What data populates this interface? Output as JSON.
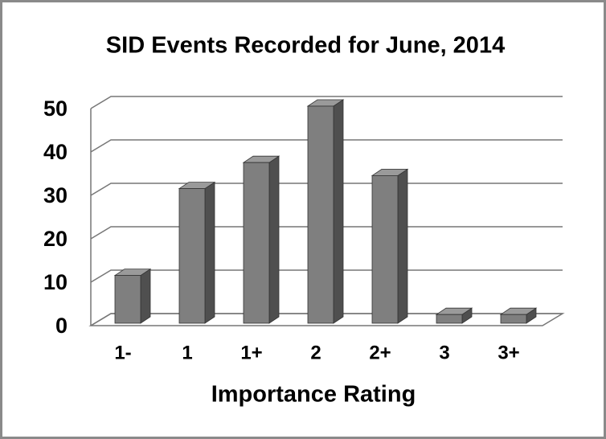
{
  "chart_data": {
    "type": "bar3d",
    "title": "SID Events Recorded for June, 2014",
    "x_label": "Importance Rating",
    "categories": [
      "1-",
      "1",
      "1+",
      "2",
      "2+",
      "3",
      "3+"
    ],
    "values": [
      11,
      31,
      37,
      50,
      34,
      2,
      2
    ],
    "color": "#7f7f7f",
    "ylim": [
      0,
      50
    ],
    "yticks": [
      0,
      10,
      20,
      30,
      40,
      50
    ],
    "grid": true
  }
}
